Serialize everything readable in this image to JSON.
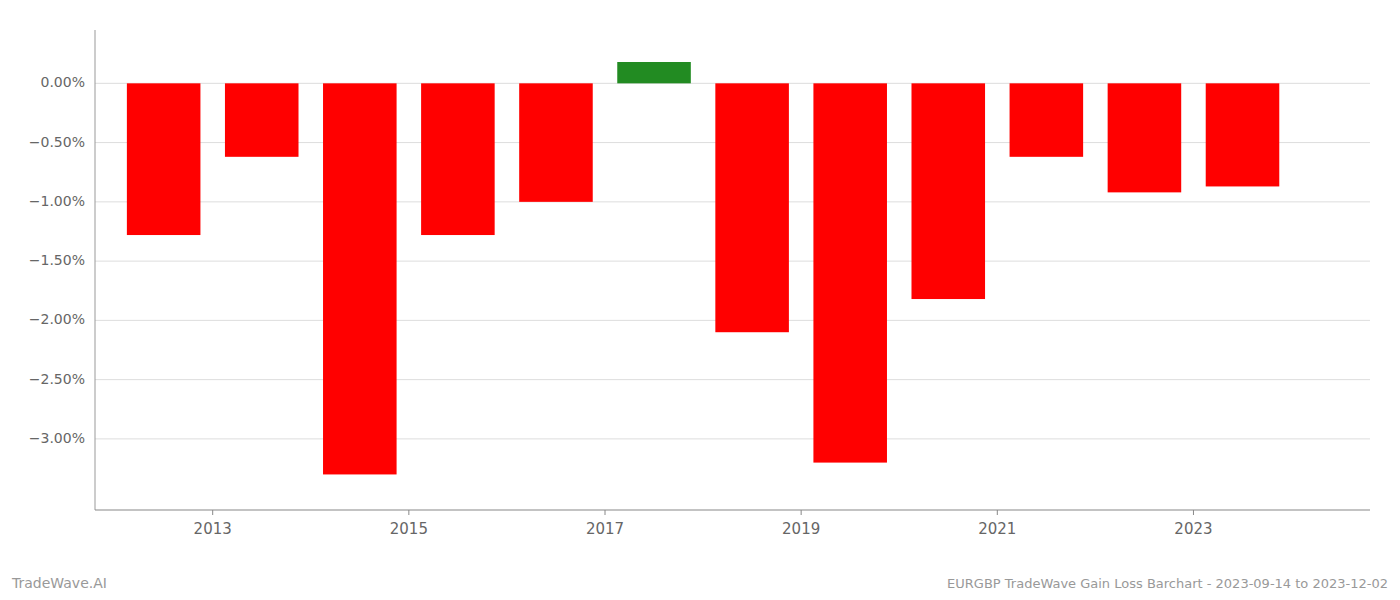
{
  "chart_data": {
    "type": "bar",
    "title": "EURGBP TradeWave Gain Loss Barchart - 2023-09-14 to 2023-12-02",
    "annotations": [
      "TradeWave.AI"
    ],
    "x": [
      2012.5,
      2013.5,
      2014.5,
      2015.5,
      2016.5,
      2017.5,
      2018.5,
      2019.5,
      2020.5,
      2021.5,
      2022.5,
      2023.5
    ],
    "values": [
      -1.28,
      -0.62,
      -3.3,
      -1.28,
      -1.0,
      0.18,
      -2.1,
      -3.2,
      -1.82,
      -0.62,
      -0.92,
      -0.87
    ],
    "colors": [
      "#ff0000",
      "#ff0000",
      "#ff0000",
      "#ff0000",
      "#ff0000",
      "#228B22",
      "#ff0000",
      "#ff0000",
      "#ff0000",
      "#ff0000",
      "#ff0000",
      "#ff0000"
    ],
    "xlim": [
      2011.8,
      2024.8
    ],
    "xticks": [
      2013,
      2015,
      2017,
      2019,
      2021,
      2023
    ],
    "ylim": [
      -3.6,
      0.45
    ],
    "yticks": [
      {
        "value": 0.0,
        "label": "0.00%"
      },
      {
        "value": -0.5,
        "label": "−0.50%"
      },
      {
        "value": -1.0,
        "label": "−1.00%"
      },
      {
        "value": -1.5,
        "label": "−1.50%"
      },
      {
        "value": -2.0,
        "label": "−2.00%"
      },
      {
        "value": -2.5,
        "label": "−2.50%"
      },
      {
        "value": -3.0,
        "label": "−3.00%"
      }
    ],
    "grid": true
  }
}
